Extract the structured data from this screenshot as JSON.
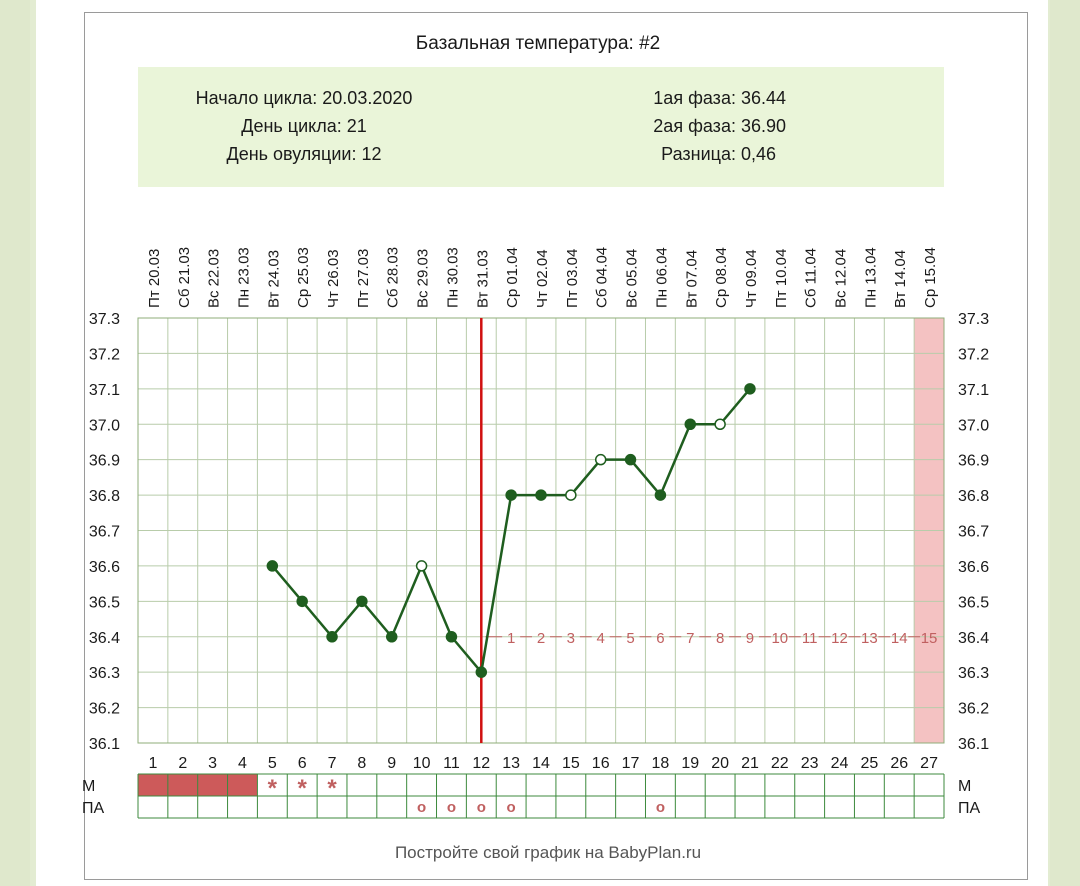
{
  "header": {
    "title": "Базальная температура: #2",
    "info_left": [
      "Начало цикла: 20.03.2020",
      "День цикла: 21",
      "День овуляции: 12"
    ],
    "info_right": [
      "1ая фаза: 36.44",
      "2ая фаза: 36.90",
      "Разница: 0,46"
    ]
  },
  "footer": {
    "text": "Постройте свой график на BabyPlan.ru"
  },
  "rows": {
    "m_label": "М",
    "pa_label": "ПА"
  },
  "colors": {
    "line": "#1f5e1f",
    "ovulation_line": "#d01010",
    "header_bg": "#eaf5d9",
    "grid": "#b8ccaa",
    "phase2_numbers": "#c06060",
    "period_fill": "#cd5a5a",
    "last_day_fill": "#f4c2c2"
  },
  "icons": {
    "moon": "moon-icon"
  },
  "chart_data": {
    "type": "line",
    "title": "Базальная температура: #2",
    "dates": [
      "Пт 20.03",
      "Сб 21.03",
      "Вс 22.03",
      "Пн 23.03",
      "Вт 24.03",
      "Ср 25.03",
      "Чт 26.03",
      "Пт 27.03",
      "Сб 28.03",
      "Вс 29.03",
      "Пн 30.03",
      "Вт 31.03",
      "Ср 01.04",
      "Чт 02.04",
      "Пт 03.04",
      "Сб 04.04",
      "Вс 05.04",
      "Пн 06.04",
      "Вт 07.04",
      "Ср 08.04",
      "Чт 09.04",
      "Пт 10.04",
      "Сб 11.04",
      "Вс 12.04",
      "Пн 13.04",
      "Вт 14.04",
      "Ср 15.04"
    ],
    "cycle_days": [
      1,
      2,
      3,
      4,
      5,
      6,
      7,
      8,
      9,
      10,
      11,
      12,
      13,
      14,
      15,
      16,
      17,
      18,
      19,
      20,
      21,
      22,
      23,
      24,
      25,
      26,
      27
    ],
    "y_ticks": [
      "37.3",
      "37.2",
      "37.1",
      "37.0",
      "36.9",
      "36.8",
      "36.7",
      "36.6",
      "36.5",
      "36.4",
      "36.3",
      "36.2",
      "36.1"
    ],
    "ylim": [
      36.1,
      37.3
    ],
    "series": [
      {
        "values": [
          null,
          null,
          null,
          null,
          36.6,
          36.5,
          36.4,
          36.5,
          36.4,
          36.6,
          36.4,
          36.3,
          36.8,
          36.8,
          36.8,
          36.9,
          36.9,
          36.8,
          37.0,
          37.0,
          37.1,
          null,
          null,
          null,
          null,
          null,
          null
        ],
        "hollow_days": [
          10,
          15,
          16,
          20
        ]
      }
    ],
    "ovulation_day": 12,
    "phase2_numbers": [
      "1",
      "2",
      "3",
      "4",
      "5",
      "6",
      "7",
      "8",
      "9",
      "10",
      "11",
      "12",
      "13",
      "14",
      "15"
    ],
    "phase2_level": 36.4,
    "period_days": [
      1,
      2,
      3,
      4
    ],
    "m_marks": [
      {
        "day": 5,
        "mark": "*"
      },
      {
        "day": 6,
        "mark": "*"
      },
      {
        "day": 7,
        "mark": "*"
      }
    ],
    "pa_marks": [
      {
        "day": 10,
        "mark": "o"
      },
      {
        "day": 11,
        "mark": "o"
      },
      {
        "day": 12,
        "mark": "o"
      },
      {
        "day": 13,
        "mark": "o"
      },
      {
        "day": 18,
        "mark": "o"
      }
    ],
    "highlight_day": 27,
    "moon_day": 2,
    "grid": true
  }
}
